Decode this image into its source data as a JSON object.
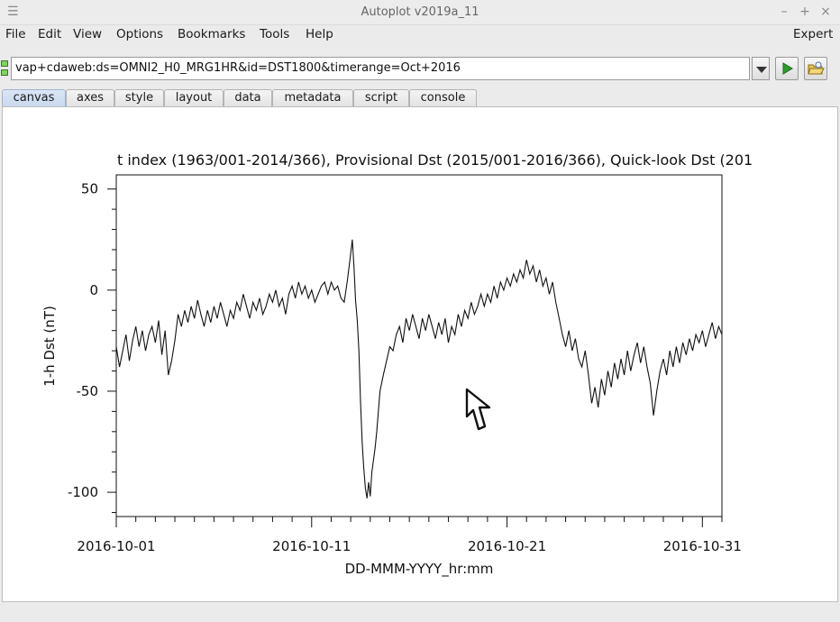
{
  "window": {
    "title": "Autoplot v2019a_11"
  },
  "menu": {
    "items": [
      {
        "id": "file",
        "label": "File"
      },
      {
        "id": "edit",
        "label": "Edit"
      },
      {
        "id": "view",
        "label": "View"
      },
      {
        "id": "options",
        "label": "Options"
      },
      {
        "id": "bookmarks",
        "label": "Bookmarks"
      },
      {
        "id": "tools",
        "label": "Tools"
      },
      {
        "id": "help",
        "label": "Help"
      }
    ],
    "expert": "Expert"
  },
  "address": {
    "value": "vap+cdaweb:ds=OMNI2_H0_MRG1HR&id=DST1800&timerange=Oct+2016"
  },
  "tabs": [
    {
      "label": "canvas",
      "active": true
    },
    {
      "label": "axes"
    },
    {
      "label": "style"
    },
    {
      "label": "layout"
    },
    {
      "label": "data"
    },
    {
      "label": "metadata"
    },
    {
      "label": "script"
    },
    {
      "label": "console"
    }
  ],
  "colors": {
    "accent_run": "#2f9a2f",
    "tab_active": "#c8d8ef"
  },
  "chart_data": {
    "type": "line",
    "title": "t index (1963/001-2014/366), Provisional Dst (2015/001-2016/366), Quick-look Dst (201",
    "xlabel": "DD-MMM-YYYY_hr:mm",
    "ylabel": "1-h Dst (nT)",
    "xlim": [
      "2016-10-01",
      "2016-11-01"
    ],
    "ylim": [
      -112,
      57
    ],
    "x_ticks": [
      "2016-10-01",
      "2016-10-11",
      "2016-10-21",
      "2016-10-31"
    ],
    "y_ticks": [
      50,
      0,
      -50,
      -100
    ],
    "series": [
      {
        "color": "#111111",
        "x_days_note": "",
        "points": [
          [
            "2016-10-01T00",
            -28
          ],
          [
            "2016-10-01T04",
            -38
          ],
          [
            "2016-10-01T08",
            -30
          ],
          [
            "2016-10-01T12",
            -22
          ],
          [
            "2016-10-01T16",
            -35
          ],
          [
            "2016-10-01T20",
            -25
          ],
          [
            "2016-10-02T00",
            -18
          ],
          [
            "2016-10-02T04",
            -28
          ],
          [
            "2016-10-02T08",
            -20
          ],
          [
            "2016-10-02T12",
            -30
          ],
          [
            "2016-10-02T16",
            -22
          ],
          [
            "2016-10-02T20",
            -18
          ],
          [
            "2016-10-03T00",
            -26
          ],
          [
            "2016-10-03T04",
            -15
          ],
          [
            "2016-10-03T08",
            -32
          ],
          [
            "2016-10-03T12",
            -20
          ],
          [
            "2016-10-03T16",
            -42
          ],
          [
            "2016-10-03T20",
            -35
          ],
          [
            "2016-10-04T00",
            -25
          ],
          [
            "2016-10-04T04",
            -12
          ],
          [
            "2016-10-04T08",
            -18
          ],
          [
            "2016-10-04T12",
            -10
          ],
          [
            "2016-10-04T16",
            -16
          ],
          [
            "2016-10-04T20",
            -8
          ],
          [
            "2016-10-05T00",
            -14
          ],
          [
            "2016-10-05T04",
            -5
          ],
          [
            "2016-10-05T08",
            -12
          ],
          [
            "2016-10-05T12",
            -18
          ],
          [
            "2016-10-05T16",
            -10
          ],
          [
            "2016-10-05T20",
            -16
          ],
          [
            "2016-10-06T00",
            -8
          ],
          [
            "2016-10-06T04",
            -14
          ],
          [
            "2016-10-06T08",
            -6
          ],
          [
            "2016-10-06T12",
            -12
          ],
          [
            "2016-10-06T16",
            -18
          ],
          [
            "2016-10-06T20",
            -10
          ],
          [
            "2016-10-07T00",
            -14
          ],
          [
            "2016-10-07T04",
            -6
          ],
          [
            "2016-10-07T08",
            -10
          ],
          [
            "2016-10-07T12",
            -2
          ],
          [
            "2016-10-07T16",
            -8
          ],
          [
            "2016-10-07T20",
            -14
          ],
          [
            "2016-10-08T00",
            -6
          ],
          [
            "2016-10-08T04",
            -10
          ],
          [
            "2016-10-08T08",
            -4
          ],
          [
            "2016-10-08T12",
            -12
          ],
          [
            "2016-10-08T16",
            -8
          ],
          [
            "2016-10-08T20",
            -2
          ],
          [
            "2016-10-09T00",
            -6
          ],
          [
            "2016-10-09T04",
            0
          ],
          [
            "2016-10-09T08",
            -8
          ],
          [
            "2016-10-09T12",
            -4
          ],
          [
            "2016-10-09T16",
            -12
          ],
          [
            "2016-10-09T20",
            -2
          ],
          [
            "2016-10-10T00",
            2
          ],
          [
            "2016-10-10T04",
            -4
          ],
          [
            "2016-10-10T08",
            4
          ],
          [
            "2016-10-10T12",
            -2
          ],
          [
            "2016-10-10T16",
            2
          ],
          [
            "2016-10-10T20",
            -4
          ],
          [
            "2016-10-11T00",
            0
          ],
          [
            "2016-10-11T04",
            -6
          ],
          [
            "2016-10-11T08",
            -2
          ],
          [
            "2016-10-11T12",
            2
          ],
          [
            "2016-10-11T16",
            4
          ],
          [
            "2016-10-11T20",
            -2
          ],
          [
            "2016-10-12T00",
            4
          ],
          [
            "2016-10-12T04",
            0
          ],
          [
            "2016-10-12T08",
            2
          ],
          [
            "2016-10-12T12",
            -4
          ],
          [
            "2016-10-12T16",
            -6
          ],
          [
            "2016-10-12T20",
            5
          ],
          [
            "2016-10-13T00",
            18
          ],
          [
            "2016-10-13T02",
            25
          ],
          [
            "2016-10-13T04",
            12
          ],
          [
            "2016-10-13T06",
            -5
          ],
          [
            "2016-10-13T08",
            -15
          ],
          [
            "2016-10-13T10",
            -30
          ],
          [
            "2016-10-13T12",
            -55
          ],
          [
            "2016-10-13T14",
            -75
          ],
          [
            "2016-10-13T16",
            -88
          ],
          [
            "2016-10-13T18",
            -98
          ],
          [
            "2016-10-13T20",
            -103
          ],
          [
            "2016-10-13T22",
            -95
          ],
          [
            "2016-10-14T00",
            -102
          ],
          [
            "2016-10-14T02",
            -90
          ],
          [
            "2016-10-14T04",
            -84
          ],
          [
            "2016-10-14T06",
            -78
          ],
          [
            "2016-10-14T08",
            -70
          ],
          [
            "2016-10-14T10",
            -60
          ],
          [
            "2016-10-14T12",
            -50
          ],
          [
            "2016-10-14T16",
            -42
          ],
          [
            "2016-10-14T20",
            -35
          ],
          [
            "2016-10-15T00",
            -28
          ],
          [
            "2016-10-15T04",
            -30
          ],
          [
            "2016-10-15T08",
            -22
          ],
          [
            "2016-10-15T12",
            -18
          ],
          [
            "2016-10-15T16",
            -26
          ],
          [
            "2016-10-15T20",
            -14
          ],
          [
            "2016-10-16T00",
            -20
          ],
          [
            "2016-10-16T04",
            -12
          ],
          [
            "2016-10-16T08",
            -18
          ],
          [
            "2016-10-16T12",
            -24
          ],
          [
            "2016-10-16T16",
            -14
          ],
          [
            "2016-10-16T20",
            -20
          ],
          [
            "2016-10-17T00",
            -12
          ],
          [
            "2016-10-17T04",
            -18
          ],
          [
            "2016-10-17T08",
            -24
          ],
          [
            "2016-10-17T12",
            -16
          ],
          [
            "2016-10-17T16",
            -22
          ],
          [
            "2016-10-17T20",
            -14
          ],
          [
            "2016-10-18T00",
            -26
          ],
          [
            "2016-10-18T04",
            -18
          ],
          [
            "2016-10-18T08",
            -22
          ],
          [
            "2016-10-18T12",
            -12
          ],
          [
            "2016-10-18T16",
            -18
          ],
          [
            "2016-10-18T20",
            -10
          ],
          [
            "2016-10-19T00",
            -14
          ],
          [
            "2016-10-19T04",
            -6
          ],
          [
            "2016-10-19T08",
            -12
          ],
          [
            "2016-10-19T12",
            -8
          ],
          [
            "2016-10-19T16",
            -2
          ],
          [
            "2016-10-19T20",
            -8
          ],
          [
            "2016-10-20T00",
            -2
          ],
          [
            "2016-10-20T04",
            -6
          ],
          [
            "2016-10-20T08",
            2
          ],
          [
            "2016-10-20T12",
            -4
          ],
          [
            "2016-10-20T16",
            4
          ],
          [
            "2016-10-20T20",
            0
          ],
          [
            "2016-10-21T00",
            6
          ],
          [
            "2016-10-21T04",
            2
          ],
          [
            "2016-10-21T08",
            8
          ],
          [
            "2016-10-21T12",
            4
          ],
          [
            "2016-10-21T16",
            10
          ],
          [
            "2016-10-21T20",
            6
          ],
          [
            "2016-10-22T00",
            15
          ],
          [
            "2016-10-22T04",
            8
          ],
          [
            "2016-10-22T08",
            12
          ],
          [
            "2016-10-22T12",
            4
          ],
          [
            "2016-10-22T16",
            10
          ],
          [
            "2016-10-22T20",
            2
          ],
          [
            "2016-10-23T00",
            6
          ],
          [
            "2016-10-23T04",
            -2
          ],
          [
            "2016-10-23T08",
            4
          ],
          [
            "2016-10-23T12",
            -6
          ],
          [
            "2016-10-23T16",
            -14
          ],
          [
            "2016-10-23T20",
            -22
          ],
          [
            "2016-10-24T00",
            -28
          ],
          [
            "2016-10-24T04",
            -20
          ],
          [
            "2016-10-24T08",
            -30
          ],
          [
            "2016-10-24T12",
            -24
          ],
          [
            "2016-10-24T16",
            -34
          ],
          [
            "2016-10-24T20",
            -38
          ],
          [
            "2016-10-25T00",
            -30
          ],
          [
            "2016-10-25T04",
            -42
          ],
          [
            "2016-10-25T08",
            -56
          ],
          [
            "2016-10-25T12",
            -48
          ],
          [
            "2016-10-25T16",
            -58
          ],
          [
            "2016-10-25T20",
            -44
          ],
          [
            "2016-10-26T00",
            -52
          ],
          [
            "2016-10-26T04",
            -40
          ],
          [
            "2016-10-26T08",
            -48
          ],
          [
            "2016-10-26T12",
            -36
          ],
          [
            "2016-10-26T16",
            -44
          ],
          [
            "2016-10-26T20",
            -34
          ],
          [
            "2016-10-27T00",
            -42
          ],
          [
            "2016-10-27T04",
            -30
          ],
          [
            "2016-10-27T08",
            -40
          ],
          [
            "2016-10-27T12",
            -32
          ],
          [
            "2016-10-27T16",
            -26
          ],
          [
            "2016-10-27T20",
            -36
          ],
          [
            "2016-10-28T00",
            -28
          ],
          [
            "2016-10-28T04",
            -38
          ],
          [
            "2016-10-28T08",
            -46
          ],
          [
            "2016-10-28T12",
            -62
          ],
          [
            "2016-10-28T16",
            -50
          ],
          [
            "2016-10-28T20",
            -40
          ],
          [
            "2016-10-29T00",
            -34
          ],
          [
            "2016-10-29T04",
            -42
          ],
          [
            "2016-10-29T08",
            -30
          ],
          [
            "2016-10-29T12",
            -38
          ],
          [
            "2016-10-29T16",
            -28
          ],
          [
            "2016-10-29T20",
            -36
          ],
          [
            "2016-10-30T00",
            -26
          ],
          [
            "2016-10-30T04",
            -32
          ],
          [
            "2016-10-30T08",
            -24
          ],
          [
            "2016-10-30T12",
            -30
          ],
          [
            "2016-10-30T16",
            -22
          ],
          [
            "2016-10-30T20",
            -26
          ],
          [
            "2016-10-31T00",
            -20
          ],
          [
            "2016-10-31T04",
            -28
          ],
          [
            "2016-10-31T08",
            -22
          ],
          [
            "2016-10-31T12",
            -16
          ],
          [
            "2016-10-31T16",
            -24
          ],
          [
            "2016-10-31T20",
            -18
          ],
          [
            "2016-11-01T00",
            -22
          ]
        ]
      }
    ],
    "grid": false
  }
}
